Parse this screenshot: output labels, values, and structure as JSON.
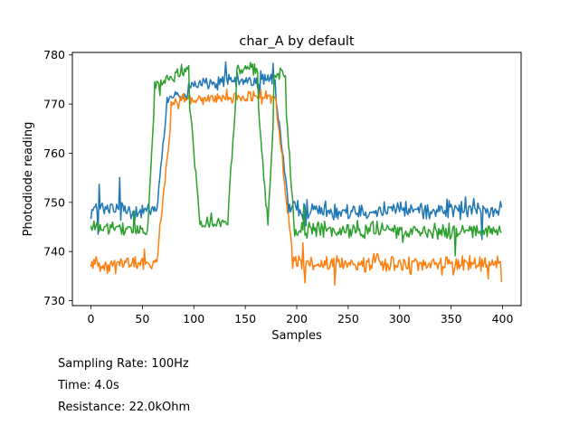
{
  "chart_data": {
    "type": "line",
    "title": "char_A by default",
    "xlabel": "Samples",
    "ylabel": "Photodiode reading",
    "xlim": [
      -18,
      418
    ],
    "ylim": [
      729,
      780.5
    ],
    "xticks": [
      0,
      50,
      100,
      150,
      200,
      250,
      300,
      350,
      400
    ],
    "yticks": [
      730,
      740,
      750,
      760,
      770,
      780
    ],
    "grid": false,
    "legend": "none",
    "num_samples": 400,
    "series": [
      {
        "color": "#1f77b4",
        "segments": [
          {
            "start": 0,
            "end": 64,
            "from": 748.5,
            "to": 748.5,
            "noise": 1.8
          },
          {
            "start": 64,
            "end": 74,
            "from": 749,
            "to": 768,
            "noise": 1.0
          },
          {
            "start": 74,
            "end": 95,
            "from": 771,
            "to": 772,
            "noise": 1.2
          },
          {
            "start": 95,
            "end": 180,
            "from": 774,
            "to": 775,
            "noise": 1.4
          },
          {
            "start": 180,
            "end": 192,
            "from": 771,
            "to": 752,
            "noise": 1.2
          },
          {
            "start": 192,
            "end": 400,
            "from": 748.5,
            "to": 748.5,
            "noise": 1.7
          }
        ]
      },
      {
        "color": "#ff7f0e",
        "segments": [
          {
            "start": 0,
            "end": 64,
            "from": 737.5,
            "to": 737.5,
            "noise": 1.4
          },
          {
            "start": 64,
            "end": 78,
            "from": 738,
            "to": 765,
            "noise": 1.0
          },
          {
            "start": 78,
            "end": 180,
            "from": 770.5,
            "to": 771.5,
            "noise": 1.1
          },
          {
            "start": 180,
            "end": 196,
            "from": 770,
            "to": 741,
            "noise": 1.4
          },
          {
            "start": 196,
            "end": 400,
            "from": 737.5,
            "to": 737.5,
            "noise": 1.5
          }
        ]
      },
      {
        "color": "#2ca02c",
        "segments": [
          {
            "start": 0,
            "end": 55,
            "from": 745,
            "to": 744,
            "noise": 1.2
          },
          {
            "start": 55,
            "end": 62,
            "from": 744,
            "to": 768,
            "noise": 1.0
          },
          {
            "start": 62,
            "end": 96,
            "from": 774,
            "to": 777,
            "noise": 1.2
          },
          {
            "start": 96,
            "end": 106,
            "from": 770,
            "to": 749,
            "noise": 1.5
          },
          {
            "start": 106,
            "end": 134,
            "from": 746,
            "to": 746,
            "noise": 1.3
          },
          {
            "start": 134,
            "end": 142,
            "from": 750,
            "to": 772,
            "noise": 1.2
          },
          {
            "start": 142,
            "end": 163,
            "from": 777,
            "to": 777,
            "noise": 1.2
          },
          {
            "start": 163,
            "end": 172,
            "from": 768,
            "to": 748,
            "noise": 1.3
          },
          {
            "start": 172,
            "end": 178,
            "from": 746,
            "to": 765,
            "noise": 1.2
          },
          {
            "start": 178,
            "end": 190,
            "from": 776,
            "to": 776,
            "noise": 1.0
          },
          {
            "start": 190,
            "end": 198,
            "from": 768,
            "to": 747,
            "noise": 1.2
          },
          {
            "start": 198,
            "end": 400,
            "from": 744.5,
            "to": 744,
            "noise": 1.4
          }
        ]
      }
    ]
  },
  "info": {
    "sampling_rate": "Sampling Rate: 100Hz",
    "time": "Time: 4.0s",
    "resistance": "Resistance: 22.0kOhm"
  }
}
